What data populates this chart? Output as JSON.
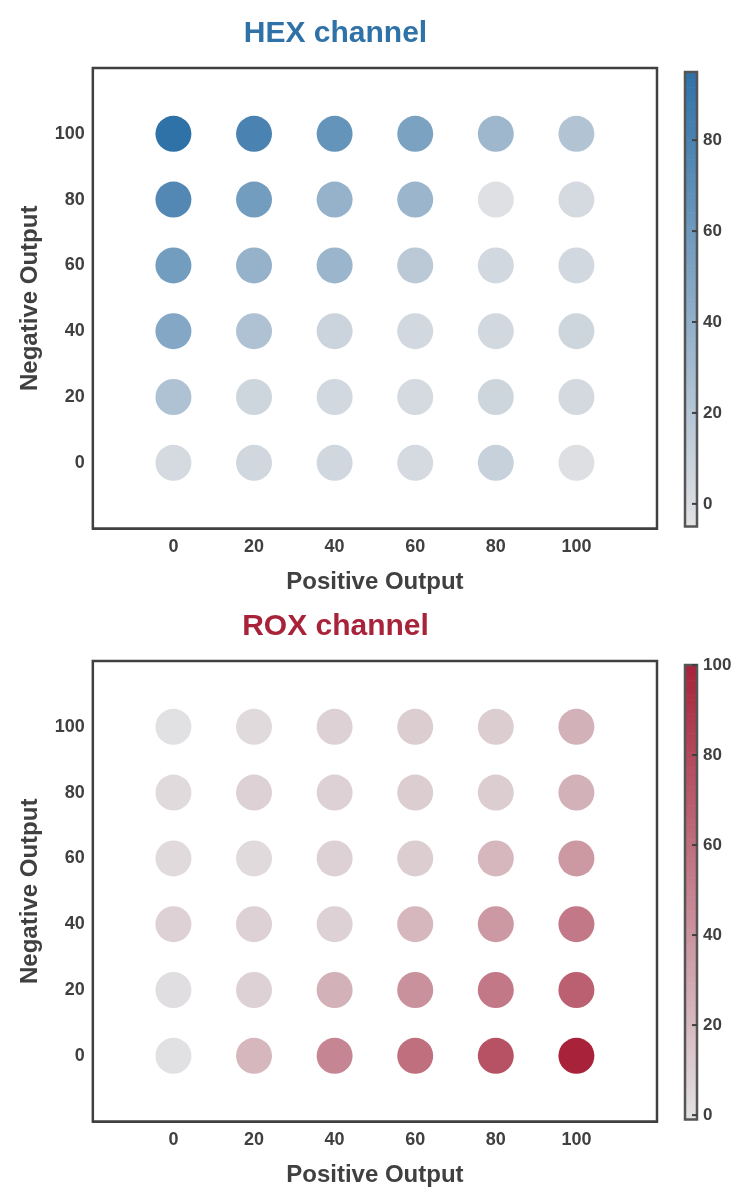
{
  "chart_data": [
    {
      "type": "scatter",
      "title": "HEX channel",
      "xlabel": "Positive Output",
      "ylabel": "Negative Output",
      "xlim": [
        -20,
        120
      ],
      "ylim": [
        -20,
        120
      ],
      "xticks": [
        0,
        20,
        40,
        60,
        80,
        100
      ],
      "yticks": [
        0,
        20,
        40,
        60,
        80,
        100
      ],
      "clim": [
        -5,
        95
      ],
      "cticks": [
        0,
        20,
        40,
        60,
        80
      ],
      "marker": "circle",
      "series": [
        {
          "x": [
            0,
            20,
            40,
            60,
            80,
            100,
            0,
            20,
            40,
            60,
            80,
            100,
            0,
            20,
            40,
            60,
            80,
            100,
            0,
            20,
            40,
            60,
            80,
            100,
            0,
            20,
            40,
            60,
            80,
            100,
            0,
            20,
            40,
            60,
            80,
            100
          ],
          "values": [
            100,
            100,
            100,
            100,
            100,
            100,
            80,
            80,
            80,
            80,
            80,
            80,
            60,
            60,
            60,
            60,
            60,
            60,
            40,
            40,
            40,
            40,
            40,
            40,
            20,
            20,
            20,
            20,
            20,
            20,
            0,
            0,
            0,
            0,
            0,
            0
          ],
          "cvalues": [
            95,
            80,
            65,
            52,
            33,
            22,
            75,
            57,
            38,
            35,
            -3,
            2,
            57,
            38,
            35,
            17,
            4,
            4,
            48,
            24,
            8,
            4,
            4,
            6,
            24,
            6,
            4,
            2,
            6,
            3,
            2,
            5,
            5,
            2,
            10,
            -2
          ]
        }
      ]
    },
    {
      "type": "scatter",
      "title": "ROX channel",
      "xlabel": "Positive Output",
      "ylabel": "Negative Output",
      "xlim": [
        -20,
        120
      ],
      "ylim": [
        -20,
        120
      ],
      "xticks": [
        0,
        20,
        40,
        60,
        80,
        100
      ],
      "yticks": [
        0,
        20,
        40,
        60,
        80,
        100
      ],
      "clim": [
        -1,
        100
      ],
      "cticks": [
        0,
        20,
        40,
        60,
        80,
        100
      ],
      "marker": "circle",
      "series": [
        {
          "x": [
            0,
            20,
            40,
            60,
            80,
            100,
            0,
            20,
            40,
            60,
            80,
            100,
            0,
            20,
            40,
            60,
            80,
            100,
            0,
            20,
            40,
            60,
            80,
            100,
            0,
            20,
            40,
            60,
            80,
            100,
            0,
            20,
            40,
            60,
            80,
            100
          ],
          "values": [
            100,
            100,
            100,
            100,
            100,
            100,
            80,
            80,
            80,
            80,
            80,
            80,
            60,
            60,
            60,
            60,
            60,
            60,
            40,
            40,
            40,
            40,
            40,
            40,
            20,
            20,
            20,
            20,
            20,
            20,
            0,
            0,
            0,
            0,
            0,
            0
          ],
          "cvalues": [
            0,
            3,
            8,
            10,
            10,
            25,
            3,
            8,
            8,
            10,
            10,
            25,
            3,
            3,
            8,
            10,
            22,
            38,
            8,
            8,
            8,
            22,
            38,
            55,
            1,
            8,
            25,
            42,
            55,
            68,
            0,
            22,
            48,
            60,
            75,
            100
          ]
        }
      ]
    }
  ]
}
